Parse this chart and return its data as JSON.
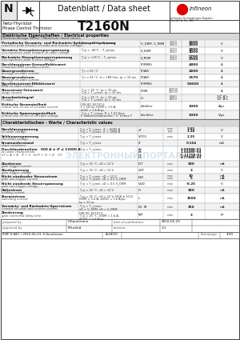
{
  "title_main": "Datenblatt / Data sheet",
  "part_number": "T2160N",
  "subtitle1": "Netz-Thyristor",
  "subtitle2": "Phase Control Thyristor",
  "company_sub": "Infineon Technologies Bipolar\nGmbH & Co. KG",
  "doc_id": "IFBP D AEC / 2010-06-23, H.Sandmann",
  "doc_code": "A.18/10",
  "page_label": "Seite/page",
  "page_num": "1/10",
  "prepared_by": "H.Sandmann",
  "approved_by": "M.Lafald",
  "date_pub": "2010-06-23",
  "revision": "3.1",
  "section1_title": "Elektrische Eigenschaften / Electrical properties",
  "section1_sub": "Höchstzulässige Werte / Maximum rated values",
  "section2_title": "Charakteristischen - Werte / Characteristic values",
  "bg_color": "#ffffff",
  "rows1": [
    [
      "Periodische Vorwärts- und Rückwärts-Spitzensperrspannung\nrepetitive peak forward off-state and reverse voltages",
      "T_vj = -40°C .. T_vjmax",
      "V_DRM, V_RRM",
      "2000\n2400",
      "2600\n2800",
      "V"
    ],
    [
      "Vorwärts-Stosspitzensperrspannung\nnon-repetitive peak forward off-state voltage",
      "T_vj = -40°C .. T_vjmax",
      "V_DSM",
      "2200\n2600",
      "2800\n3000",
      "V"
    ],
    [
      "Rückwärts-Stosspitzensperrspannung\nnon-repetitive peak reverse voltage",
      "T_vj = +25°C .. T_vjmax",
      "V_RSM",
      "2300\n2500",
      "2700\n2900",
      "V"
    ],
    [
      "Durchlassstrom-Grenzeffektivwert\nmaximum RMS on-state current",
      "",
      "IT(RMS)",
      "",
      "4800",
      "A"
    ],
    [
      "Dauergrundstrom\naverage on-state current",
      "T_c = 65 °C",
      "IT(AV)",
      "",
      "2400",
      "A"
    ],
    [
      "Dauergrundstrom\naverage on-state current",
      "T_c = 55 °C, d = 180°/sin, tp = 10 ms",
      "IT(AV)",
      "",
      "3470",
      "A"
    ],
    [
      "Durchlassstrom-Effektivwert\nRMS on-state current",
      "",
      "IT(RMS)",
      "",
      "54650",
      "A"
    ],
    [
      "Stossstrom-Grenzwert\nsurge current",
      "T_vj = 25 °C, tp = 10 ms\nT_vj = T_vjmax, tp = 10 ms",
      "ITSM",
      "46000\n40000",
      "",
      "A"
    ],
    [
      "Grenzlastintegral\nI²t-value",
      "T_vj = 25 °C, tp = 10 ms\nT_vj = T_vjmax, tp = 10 ms",
      "I²t",
      "6860\n8000",
      "",
      "10⁴ A²s\n10⁴ A²s"
    ],
    [
      "Kritische Stromsteilheit\ncritical rate of rise of on-state current",
      "DIN IEC 60747-6\nf = 50 Hz, IGSM = 1.6 A,\ndiGD = 1.6 A/μs",
      "(di/dt)cr",
      "",
      "1000",
      "A/μs"
    ],
    [
      "Kritische Spannungssteilheit\ncritical rate of rise of off-state voltage",
      "T_vj = T_vjmax, R = 1.67 Ω/μs\n5 halbsinushalbwellen / 5° before F",
      "(dv/dt)cr",
      "",
      "1000",
      "V/μs"
    ]
  ],
  "rows1_heights": [
    9,
    9,
    9,
    8,
    8,
    8,
    8,
    9,
    9,
    11,
    11
  ],
  "rows2": [
    [
      "Durchlassspannung\non-state voltage",
      "T_vj = T_vjmax, iT = 6000 A\nT_vj = T_vjmax, iT = 1800 A",
      "vT",
      "max\ntyp",
      "2.65\n1.38",
      "V"
    ],
    [
      "Schleusenspannung\nthreshold voltage",
      "T_vj = T_vjmax",
      "V(TO)",
      "max",
      "1.25",
      "V"
    ],
    [
      "Ersatzwiderstand\nslope resistance",
      "T_vj = T_vjmax",
      "rT",
      "",
      "0.154",
      "mΩ"
    ],
    [
      "Durchlasskennlinie   600 A ≤ iT ≤ 12000 A\non-state characteristic\nvT = A + B · iT + C · ln(iT + 1) + D · √iT",
      "T_vj = T_vjmax",
      "An\nBn\nCn\nDn",
      "",
      "6.0998E-01\n1.3448E-04\n-7.1175E-01\n8.7788E-03",
      ""
    ],
    [
      "Zündstrom\ngate trigger current",
      "T_vj = 25 °C, vD = 12 V",
      "IGT",
      "max",
      "300",
      "mA"
    ],
    [
      "Zündspannung\ngate trigger voltage",
      "T_vj = 25 °C, vD = 12 V",
      "VGT",
      "max",
      "3",
      "V"
    ],
    [
      "Nicht zündender Steuerstrom\ngate non-trigger current",
      "T_vj = T_vjmin, vD = 12 V\nT_vj = T_vjmin, vD = 0.5 V_DRM",
      "IGD",
      "max\nmax",
      "10\n5",
      "mA\nmA"
    ],
    [
      "Nicht zündende Steuerspannung\ngate non-trigger voltage",
      "T_vj = T_vjmin, vD = 0.5 V_DRM",
      "VGD",
      "max",
      "-0.25",
      "V"
    ],
    [
      "Haltestrom\nholding current",
      "T_vj = 25 °C, vD = 12 V",
      "IH",
      "max",
      "300",
      "mA"
    ],
    [
      "Einraststrom\nswitching current",
      "T_vj = 25 °C, vD = 12 V, RGK ≥ 10 Ω\nIGSM = 1.6 A, diGS1 = 1.6 A/μs,\ntp = 20 μs",
      "IL",
      "max",
      "1500",
      "mA"
    ],
    [
      "Vorwärts- und Rückwärts-Sperrstrom\nforward off-state and reverse current",
      "T_vj = T_vjmax\nvD = V_DRM, vR = V_RRM",
      "ID, IR",
      "max",
      "250",
      "mA"
    ],
    [
      "Zündverzug\ngate controlled delay time",
      "DIN IEC 60747-6\nT_vj = 25 °C, IGSM = 1.6 A,\ndiGS1 = 1.6 A/μs",
      "tgd",
      "max",
      "3",
      "μs"
    ]
  ],
  "rows2_heights": [
    9,
    8,
    8,
    18,
    8,
    8,
    9,
    8,
    8,
    12,
    9,
    11
  ]
}
